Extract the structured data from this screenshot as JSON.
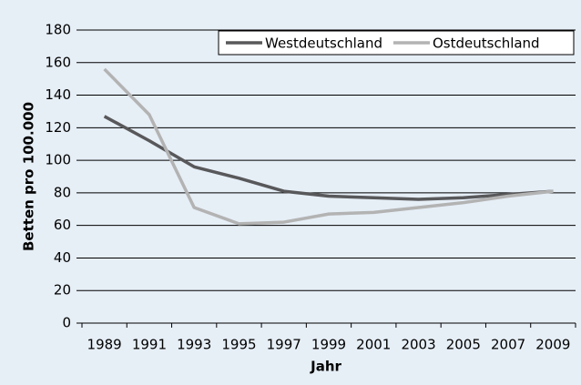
{
  "chart_data": {
    "type": "line",
    "x_label": "Jahr",
    "y_label": "Betten pro 100.000",
    "categories": [
      "1989",
      "1991",
      "1993",
      "1995",
      "1997",
      "1999",
      "2001",
      "2003",
      "2005",
      "2007",
      "2009"
    ],
    "series": [
      {
        "name": "Westdeutschland",
        "color": "#58585a",
        "values": [
          127,
          112,
          96,
          89,
          81,
          78,
          77,
          76,
          77,
          79,
          81
        ]
      },
      {
        "name": "Ostdeutschland",
        "color": "#b3b3b3",
        "values": [
          156,
          128,
          71,
          61,
          62,
          67,
          68,
          71,
          74,
          78,
          81
        ]
      }
    ],
    "ylim": [
      0,
      180
    ],
    "yticks": [
      0,
      20,
      40,
      60,
      80,
      100,
      120,
      140,
      160,
      180
    ],
    "grid": true
  }
}
